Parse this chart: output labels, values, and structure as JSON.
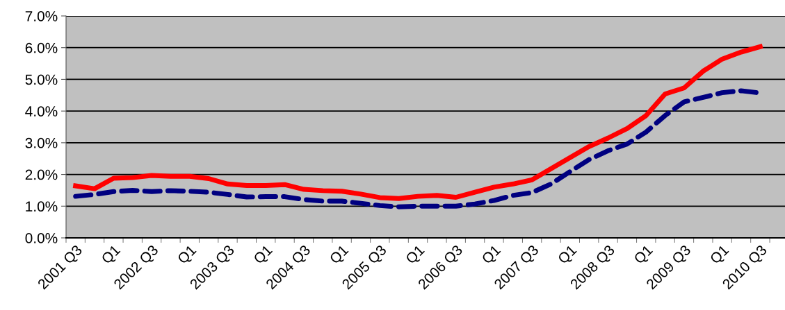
{
  "chart_data": {
    "type": "line",
    "categories": [
      "2001 Q3",
      null,
      "Q1",
      null,
      "2002 Q3",
      null,
      "Q1",
      null,
      "2003 Q3",
      null,
      "Q1",
      null,
      "2004 Q3",
      null,
      "Q1",
      null,
      "2005 Q3",
      null,
      "Q1",
      null,
      "2006 Q3",
      null,
      "Q1",
      null,
      "2007 Q3",
      null,
      "Q1",
      null,
      "2008 Q3",
      null,
      "Q1",
      null,
      "2009 Q3",
      null,
      "Q1",
      null,
      "2010 Q3"
    ],
    "series": [
      {
        "color": "#ff0000",
        "line_style": "solid",
        "values": [
          1.64,
          1.55,
          1.88,
          1.9,
          1.97,
          1.94,
          1.94,
          1.87,
          1.7,
          1.65,
          1.65,
          1.68,
          1.53,
          1.49,
          1.47,
          1.38,
          1.27,
          1.24,
          1.31,
          1.34,
          1.28,
          1.44,
          1.6,
          1.7,
          1.83,
          2.18,
          2.53,
          2.88,
          3.15,
          3.45,
          3.86,
          4.54,
          4.73,
          5.26,
          5.64,
          5.86,
          6.03
        ]
      },
      {
        "color": "#000080",
        "line_style": "dashed",
        "values": [
          1.31,
          1.37,
          1.46,
          1.5,
          1.46,
          1.49,
          1.47,
          1.44,
          1.37,
          1.29,
          1.3,
          1.3,
          1.21,
          1.16,
          1.16,
          1.09,
          1.02,
          0.98,
          1.0,
          1.0,
          1.0,
          1.07,
          1.18,
          1.34,
          1.43,
          1.7,
          2.09,
          2.47,
          2.75,
          2.96,
          3.34,
          3.86,
          4.29,
          4.43,
          4.58,
          4.64,
          4.57
        ]
      }
    ],
    "ylim": [
      0,
      7
    ],
    "yticks": [
      {
        "value": 0,
        "label": "0.0%"
      },
      {
        "value": 1,
        "label": "1.0%"
      },
      {
        "value": 2,
        "label": "2.0%"
      },
      {
        "value": 3,
        "label": "3.0%"
      },
      {
        "value": 4,
        "label": "4.0%"
      },
      {
        "value": 5,
        "label": "5.0%"
      },
      {
        "value": 6,
        "label": "6.0%"
      },
      {
        "value": 7,
        "label": "7.0%"
      }
    ],
    "grid": "y",
    "legend": false,
    "marker": "none"
  }
}
